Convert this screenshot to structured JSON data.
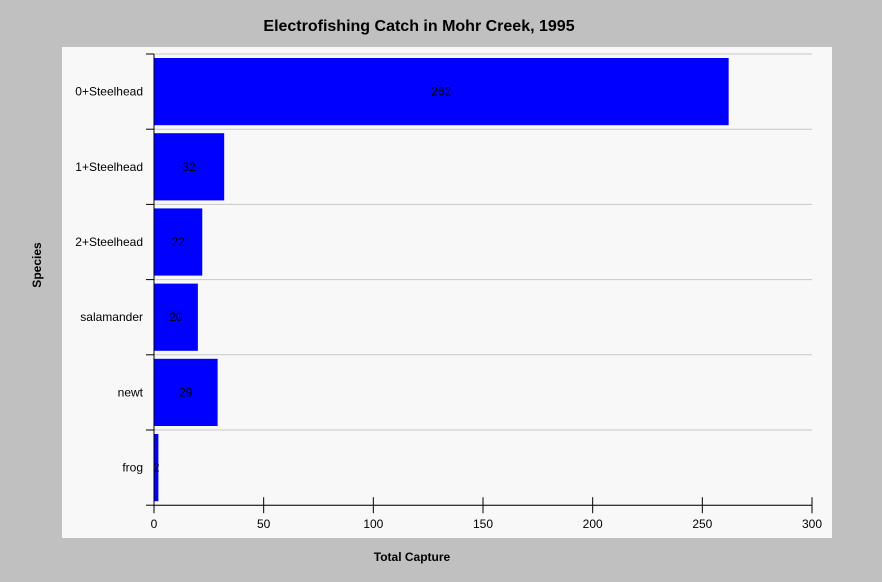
{
  "chart_data": {
    "type": "bar",
    "orientation": "horizontal",
    "title": "Electrofishing Catch in Mohr Creek, 1995",
    "xlabel": "Total Capture",
    "ylabel": "Species",
    "categories": [
      "0+Steelhead",
      "1+Steelhead",
      "2+Steelhead",
      "salamander",
      "newt",
      "frog"
    ],
    "values": [
      262,
      32,
      22,
      20,
      29,
      2
    ],
    "xlim": [
      0,
      300
    ],
    "xticks": [
      0,
      50,
      100,
      150,
      200,
      250,
      300
    ],
    "bar_color": "#0000ff",
    "grid": true,
    "legend": false
  }
}
